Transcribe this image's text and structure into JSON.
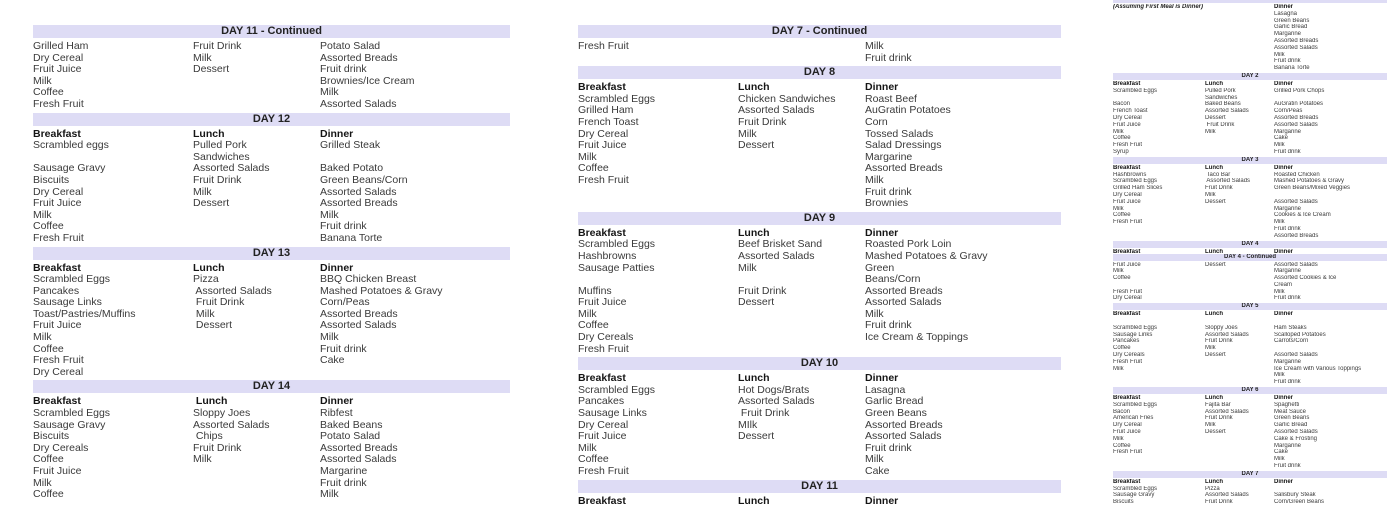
{
  "meal_columns": [
    "Breakfast",
    "Lunch",
    "Dinner"
  ],
  "header_bar_color": "#dedcf5",
  "pages": [
    {
      "id": "pageA",
      "name": "menu-page-days-11-14",
      "sections": [
        {
          "day": "DAY 11 - Continued",
          "rows": [
            [
              "Grilled Ham",
              "Fruit Drink",
              "Potato Salad"
            ],
            [
              "Dry Cereal",
              "Milk",
              "Assorted Breads"
            ],
            [
              "Fruit Juice",
              "Dessert",
              "Fruit drink"
            ],
            [
              "Milk",
              "",
              "Brownies/Ice Cream"
            ],
            [
              "Coffee",
              "",
              "Milk"
            ],
            [
              "Fresh Fruit",
              "",
              "Assorted Salads"
            ]
          ]
        },
        {
          "day": "DAY 12",
          "columns": [
            "Breakfast",
            "Lunch",
            "Dinner"
          ],
          "rows": [
            [
              "Scrambled eggs",
              "Pulled Pork",
              "Grilled Steak"
            ],
            [
              "",
              "Sandwiches",
              ""
            ],
            [
              "Sausage Gravy",
              "Assorted Salads",
              "Baked Potato"
            ],
            [
              "Biscuits",
              "Fruit Drink",
              "Green Beans/Corn"
            ],
            [
              "Dry Cereal",
              "Milk",
              "Assorted Salads"
            ],
            [
              "Fruit Juice",
              "Dessert",
              "Assorted Breads"
            ],
            [
              "Milk",
              "",
              "Milk"
            ],
            [
              "Coffee",
              "",
              "Fruit drink"
            ],
            [
              "Fresh Fruit",
              "",
              "Banana Torte"
            ]
          ]
        },
        {
          "day": "DAY 13",
          "columns": [
            "Breakfast",
            "Lunch",
            "Dinner"
          ],
          "rows": [
            [
              "Scrambled Eggs",
              "Pizza",
              "BBQ Chicken Breast"
            ],
            [
              "Pancakes",
              " Assorted Salads",
              "Mashed Potatoes & Gravy"
            ],
            [
              "Sausage Links",
              " Fruit Drink",
              "Corn/Peas"
            ],
            [
              "Toast/Pastries/Muffins",
              " Milk",
              "Assorted Breads"
            ],
            [
              "Fruit Juice",
              " Dessert",
              "Assorted Salads"
            ],
            [
              "Milk",
              "",
              "Milk"
            ],
            [
              "Coffee",
              "",
              "Fruit drink"
            ],
            [
              "Fresh Fruit",
              "",
              "Cake"
            ],
            [
              "Dry Cereal",
              "",
              ""
            ]
          ]
        },
        {
          "day": "DAY 14",
          "columns": [
            "Breakfast",
            " Lunch",
            "Dinner"
          ],
          "rows": [
            [
              "Scrambled Eggs",
              "Sloppy Joes",
              "Ribfest"
            ],
            [
              "Sausage Gravy",
              "Assorted Salads",
              "Baked Beans"
            ],
            [
              "Biscuits",
              " Chips",
              "Potato Salad"
            ],
            [
              "Dry Cereals",
              "Fruit Drink",
              "Assorted Breads"
            ],
            [
              "Coffee",
              "Milk",
              "Assorted Salads"
            ],
            [
              "Fruit Juice",
              "",
              "Margarine"
            ],
            [
              "Milk",
              "",
              "Fruit drink"
            ],
            [
              "Coffee",
              "",
              "Milk"
            ]
          ]
        }
      ]
    },
    {
      "id": "pageB",
      "name": "menu-page-days-7-11",
      "sections": [
        {
          "day": "DAY 7 - Continued",
          "rows": [
            [
              "Fresh Fruit",
              "",
              "Milk"
            ],
            [
              "",
              "",
              "Fruit drink"
            ]
          ]
        },
        {
          "day": "DAY 8",
          "columns": [
            "Breakfast",
            "Lunch",
            "Dinner"
          ],
          "rows": [
            [
              "Scrambled Eggs",
              "Chicken Sandwiches",
              "Roast Beef"
            ],
            [
              "Grilled Ham",
              "Assorted Salads",
              "AuGratin Potatoes"
            ],
            [
              "French Toast",
              "Fruit Drink",
              "Corn"
            ],
            [
              "Dry Cereal",
              "Milk",
              "Tossed Salads"
            ],
            [
              "Fruit Juice",
              "Dessert",
              "Salad Dressings"
            ],
            [
              "Milk",
              "",
              "Margarine"
            ],
            [
              "Coffee",
              "",
              "Assorted Breads"
            ],
            [
              "Fresh Fruit",
              "",
              "Milk"
            ],
            [
              "",
              "",
              "Fruit drink"
            ],
            [
              "",
              "",
              "Brownies"
            ]
          ]
        },
        {
          "day": "DAY 9",
          "columns": [
            "Breakfast",
            "Lunch",
            "Dinner"
          ],
          "rows": [
            [
              "Scrambled Eggs",
              "Beef Brisket Sand",
              "Roasted Pork Loin"
            ],
            [
              "Hashbrowns",
              "Assorted Salads",
              "Mashed Potatoes & Gravy"
            ],
            [
              "Sausage Patties",
              "Milk",
              "Green"
            ],
            [
              "",
              "",
              "Beans/Corn"
            ],
            [
              "Muffins",
              "Fruit Drink",
              "Assorted Breads"
            ],
            [
              "Fruit Juice",
              "Dessert",
              "Assorted Salads"
            ],
            [
              "Milk",
              "",
              "Milk"
            ],
            [
              "Coffee",
              "",
              "Fruit drink"
            ],
            [
              "Dry Cereals",
              "",
              "Ice Cream & Toppings"
            ],
            [
              "Fresh Fruit",
              "",
              ""
            ]
          ]
        },
        {
          "day": "DAY 10",
          "columns": [
            "Breakfast",
            "Lunch",
            "Dinner"
          ],
          "rows": [
            [
              "Scrambled Eggs",
              "Hot Dogs/Brats",
              "Lasagna"
            ],
            [
              "Pancakes",
              "Assorted Salads",
              "Garlic Bread"
            ],
            [
              "Sausage Links",
              " Fruit Drink",
              "Green Beans"
            ],
            [
              "Dry Cereal",
              "MIlk",
              "Assorted Breads"
            ],
            [
              "Fruit Juice",
              "Dessert",
              "Assorted Salads"
            ],
            [
              "Milk",
              "",
              "Fruit drink"
            ],
            [
              "Coffee",
              "",
              "Milk"
            ],
            [
              "Fresh Fruit",
              "",
              "Cake"
            ]
          ]
        },
        {
          "day": "DAY 11",
          "columns": [
            "Breakfast",
            "Lunch",
            "Dinner"
          ],
          "rows": []
        }
      ]
    },
    {
      "id": "pageC",
      "name": "menu-page-days-1-7",
      "sections": [
        {
          "day": "DAY 1",
          "columns": [
            "(Assuming First Meal is Dinner)",
            "",
            "Dinner"
          ],
          "note": true,
          "rows": [
            [
              "",
              "",
              "Lasagna"
            ],
            [
              "",
              "",
              "Green Beans"
            ],
            [
              "",
              "",
              "Garlic Bread"
            ],
            [
              "",
              "",
              "Margarine"
            ],
            [
              "",
              "",
              "Assorted Breads"
            ],
            [
              "",
              "",
              "Assorted Salads"
            ],
            [
              "",
              "",
              "Milk"
            ],
            [
              "",
              "",
              "Fruit drink"
            ],
            [
              "",
              "",
              "Banana Torte"
            ]
          ]
        },
        {
          "day": "DAY 2",
          "columns": [
            "Breakfast",
            "Lunch",
            "Dinner"
          ],
          "rows": [
            [
              "Scrambled Eggs",
              "Pulled Pork",
              "Grilled Pork Chops"
            ],
            [
              "",
              "Sandwiches",
              ""
            ],
            [
              "Bacon",
              "Baked Beans",
              "AuGratin Potatoes"
            ],
            [
              "French Toast",
              "Assorted Salads",
              "Corn/Peas"
            ],
            [
              "Dry Cereal",
              "Dessert",
              "Assorted Breads"
            ],
            [
              "Fruit Juice",
              " Fruit Drink",
              "Assorted Salads"
            ],
            [
              "Milk",
              "Milk",
              "Margarine"
            ],
            [
              "Coffee",
              "",
              "Cake"
            ],
            [
              "Fresh Fruit",
              "",
              "Milk"
            ],
            [
              "Syrup",
              "",
              "Fruit drink"
            ]
          ]
        },
        {
          "day": "DAY 3",
          "columns": [
            "Breakfast",
            "Lunch",
            "Dinner"
          ],
          "rows": [
            [
              "Hashbrowns",
              " Taco Bar",
              "Roasted Chicken"
            ],
            [
              "Scrambled Eggs",
              " Assorted Salads",
              "Mashed Potatoes & Gravy"
            ],
            [
              "Grilled Ham Slices",
              "Fruit Drink",
              "Green Beans/Mixed Veggies"
            ],
            [
              "Dry Cereal",
              "Milk",
              ""
            ],
            [
              "Fruit Juice",
              "Dessert",
              "Assorted Salads"
            ],
            [
              "Milk",
              "",
              "Margarine"
            ],
            [
              "Coffee",
              "",
              "Cookies & Ice Cream"
            ],
            [
              "Fresh Fruit",
              "",
              "Milk"
            ],
            [
              "",
              "",
              "Fruit drink"
            ],
            [
              "",
              "",
              "Assorted Breads"
            ]
          ]
        },
        {
          "day": "DAY 4",
          "columns": [
            "Breakfast",
            "Lunch",
            "Dinner"
          ],
          "columns_clipped": true,
          "continued": "DAY 4 - Continued",
          "rows": [
            [
              "Fruit Juice",
              "Dessert",
              "Assorted Salads"
            ],
            [
              "Milk",
              "",
              "Margarine"
            ],
            [
              "Coffee",
              "",
              "Assorted Cookies & Ice"
            ],
            [
              "",
              "",
              "Cream"
            ],
            [
              "Fresh Fruit",
              "",
              "Milk"
            ],
            [
              "Dry Cereal",
              "",
              "Fruit drink"
            ]
          ]
        },
        {
          "day": "DAY 5",
          "columns": [
            "Breakfast",
            "Lunch",
            "Dinner"
          ],
          "rows": [
            [
              "",
              "",
              ""
            ],
            [
              "Scrambled Eggs",
              "Sloppy Joes",
              "Ham Steaks"
            ],
            [
              "Sausage Links",
              "Assorted Salads",
              "Scalloped Potatoes"
            ],
            [
              "Pancakes",
              "Fruit Drink",
              "Carrots/Corn"
            ],
            [
              "Coffee",
              "Milk",
              ""
            ],
            [
              "Dry Cereals",
              "Dessert",
              "Assorted Salads"
            ],
            [
              "Fresh Fruit",
              "",
              "Margarine"
            ],
            [
              "Milk",
              "",
              "Ice Cream with Various Toppings"
            ],
            [
              "",
              "",
              "Milk"
            ],
            [
              "",
              "",
              "Fruit drink"
            ]
          ]
        },
        {
          "day": "DAY 6",
          "columns": [
            "Breakfast",
            "Lunch",
            "Dinner"
          ],
          "rows": [
            [
              "Scrambled Eggs",
              "Fajita Bar",
              "Spaghetti"
            ],
            [
              "Bacon",
              "Assorted Salads",
              "Meat Sauce"
            ],
            [
              "American Fries",
              "Fruit Drink",
              "Green Beans"
            ],
            [
              "Dry Cereal",
              "Milk",
              "Garlic Bread"
            ],
            [
              "Fruit Juice",
              "Dessert",
              "Assorted Salads"
            ],
            [
              "Milk",
              "",
              "Cake & Frosting"
            ],
            [
              "Coffee",
              "",
              "Margarine"
            ],
            [
              "Fresh Fruit",
              "",
              "Cake"
            ],
            [
              "",
              "",
              "Milk"
            ],
            [
              "",
              "",
              "Fruit drink"
            ]
          ]
        },
        {
          "day": "DAY 7",
          "columns": [
            "Breakfast",
            "Lunch",
            "Dinner"
          ],
          "rows": [
            [
              "Scrambled Eggs",
              "Pizza",
              ""
            ],
            [
              "Sausage Gravy",
              "Assorted Salads",
              "Salisbury Steak"
            ],
            [
              "Biscuits",
              "Fruit Drink",
              "Corn/Green Beans"
            ]
          ]
        }
      ]
    }
  ]
}
